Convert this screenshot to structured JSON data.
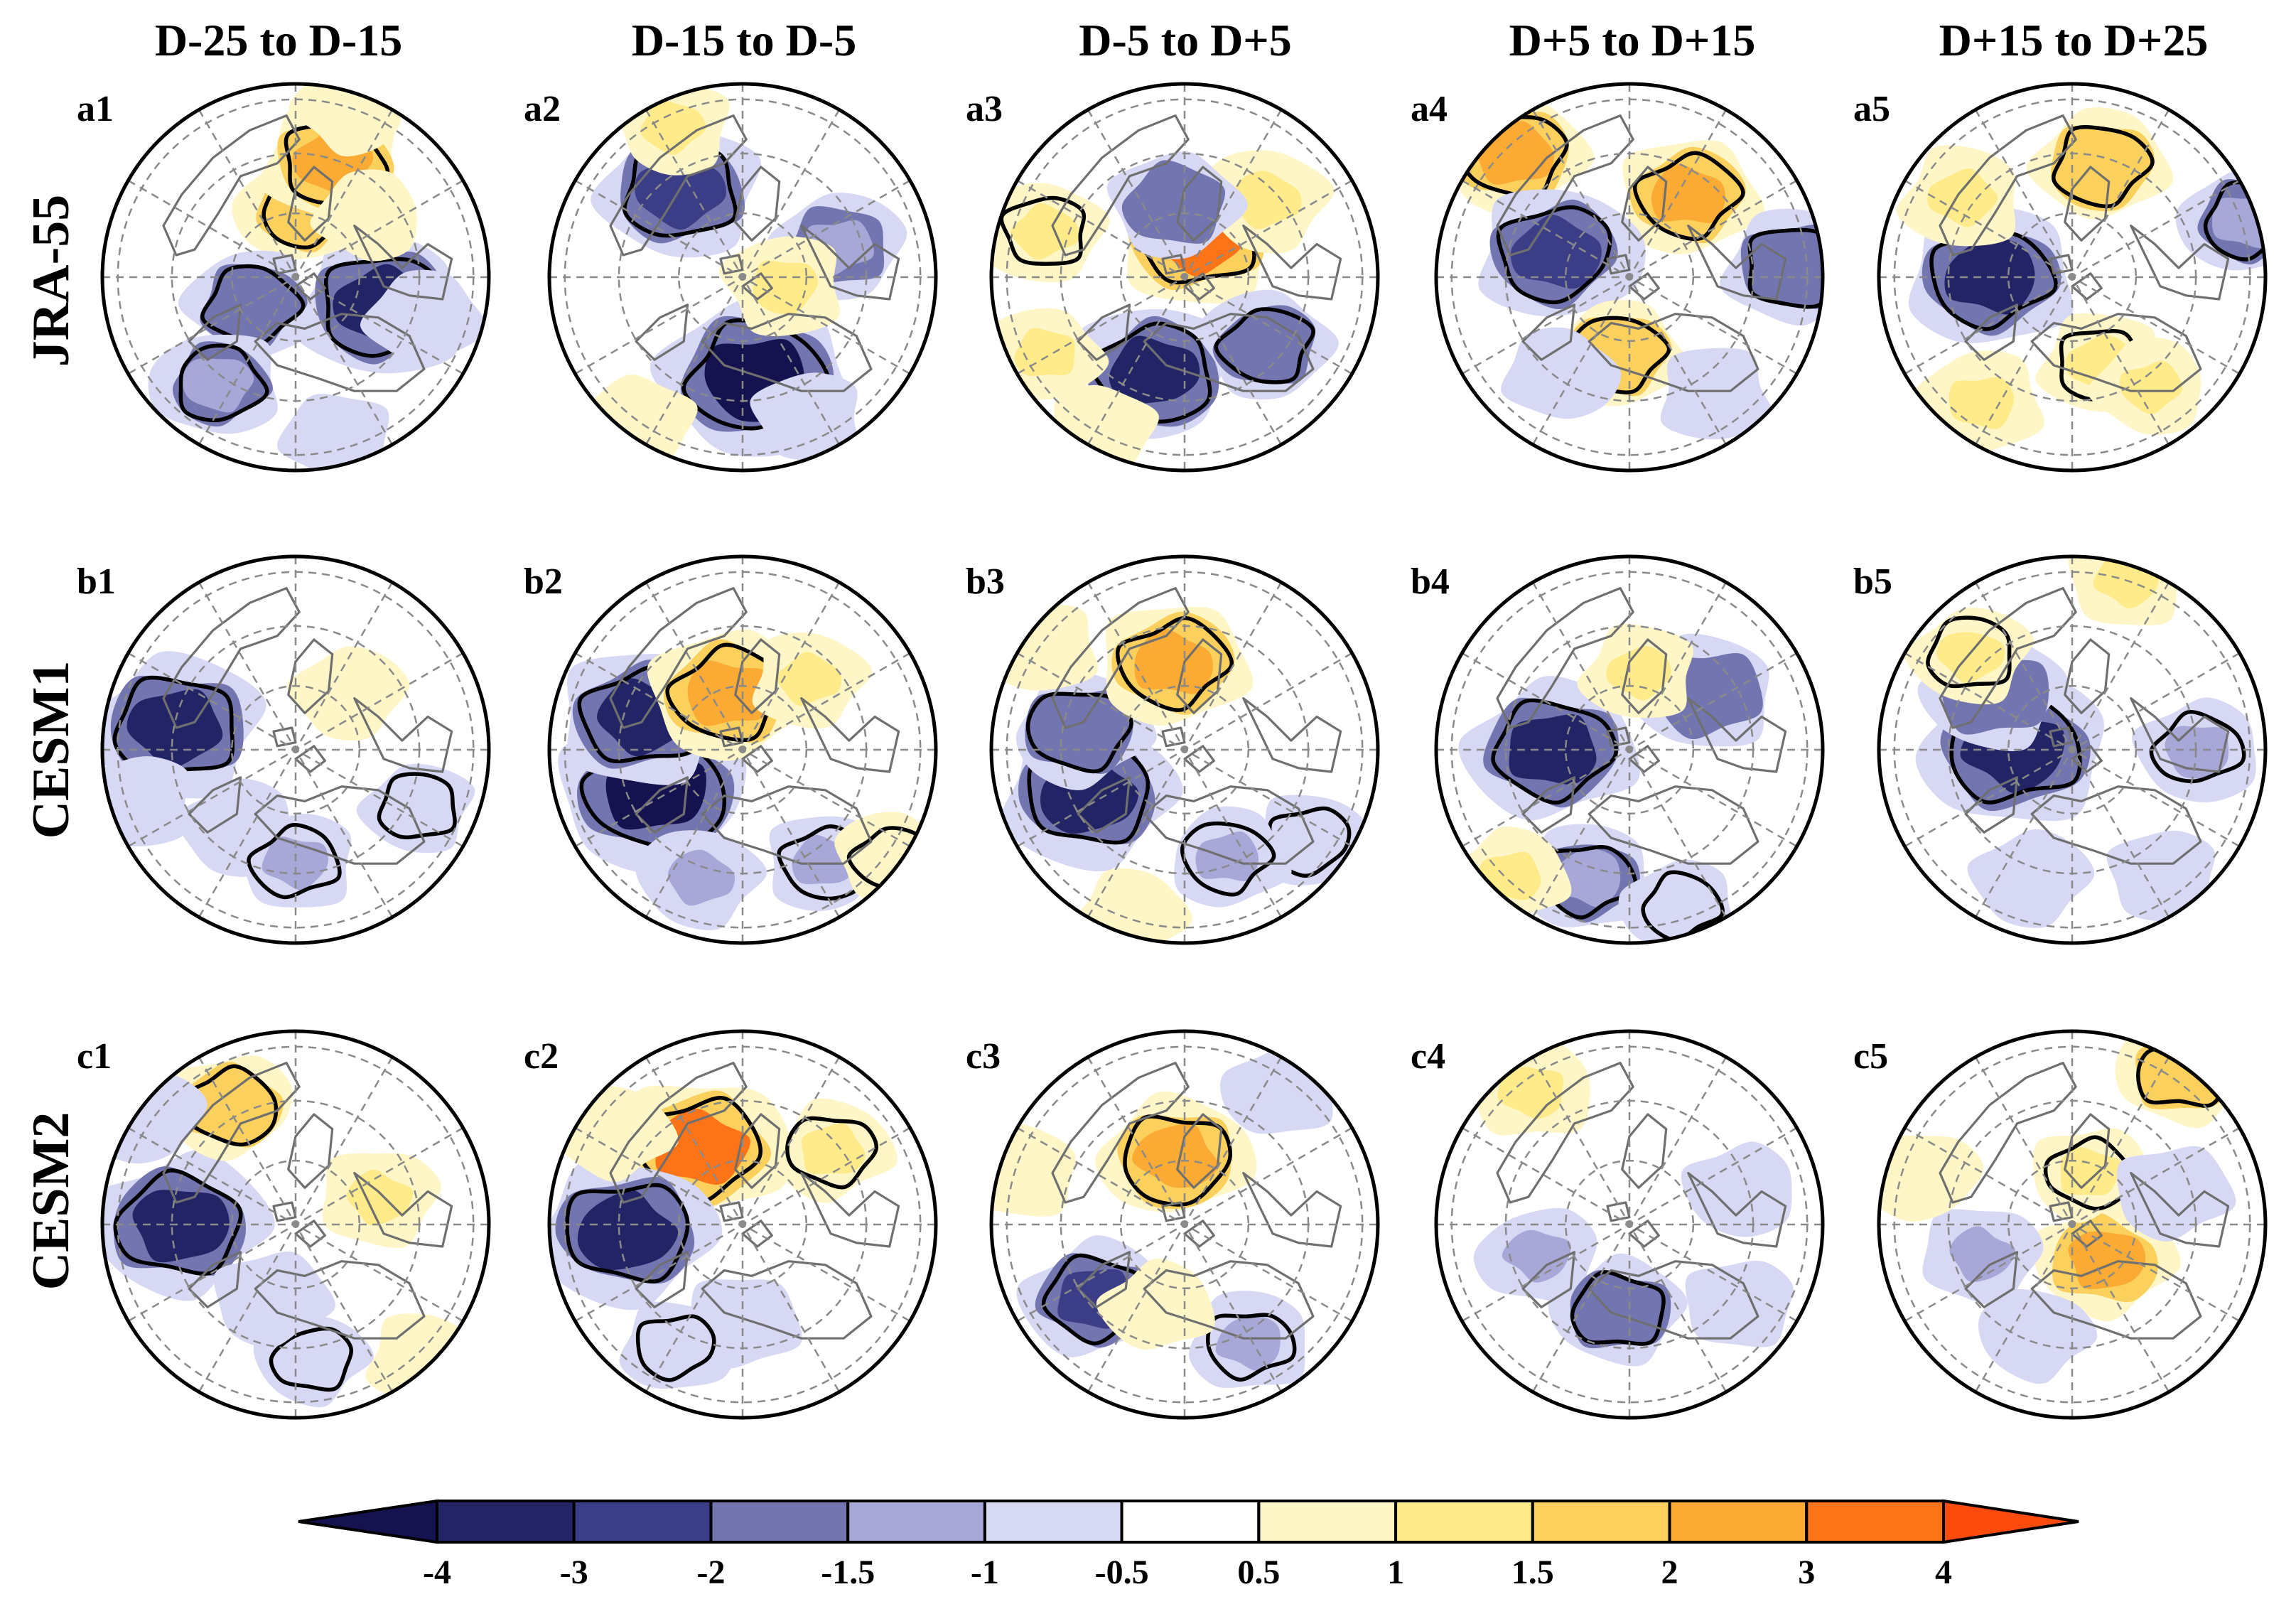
{
  "figure": {
    "column_titles": [
      "D-25 to D-15",
      "D-15 to D-5",
      "D-5 to D+5",
      "D+5 to D+15",
      "D+15 to D+25"
    ],
    "row_titles": [
      "JRA-55",
      "CESM1",
      "CESM2"
    ],
    "panel_labels": [
      [
        "a1",
        "a2",
        "a3",
        "a4",
        "a5"
      ],
      [
        "b1",
        "b2",
        "b3",
        "b4",
        "b5"
      ],
      [
        "c1",
        "c2",
        "c3",
        "c4",
        "c5"
      ]
    ]
  },
  "colorbar": {
    "tick_labels": [
      "-4",
      "-3",
      "-2",
      "-1.5",
      "-1",
      "-0.5",
      "0.5",
      "1",
      "1.5",
      "2",
      "3",
      "4"
    ],
    "bins": [
      {
        "range": "< -4",
        "color": "#14134f"
      },
      {
        "range": "-4 to -3",
        "color": "#232466"
      },
      {
        "range": "-3 to -2",
        "color": "#3b3d86"
      },
      {
        "range": "-2 to -1.5",
        "color": "#7375b0"
      },
      {
        "range": "-1.5 to -1",
        "color": "#a7a8d8"
      },
      {
        "range": "-1 to -0.5",
        "color": "#d7d8f3"
      },
      {
        "range": "-0.5 to 0.5",
        "color": "#ffffff"
      },
      {
        "range": "0.5 to 1",
        "color": "#fff6c7"
      },
      {
        "range": "1 to 1.5",
        "color": "#ffeb8a"
      },
      {
        "range": "1.5 to 2",
        "color": "#fbd05c"
      },
      {
        "range": "2 to 3",
        "color": "#fbab33"
      },
      {
        "range": "3 to 4",
        "color": "#fd7318"
      },
      {
        "range": "> 4",
        "color": "#fd4a0d"
      }
    ]
  },
  "panels": [
    [
      {
        "id": "a1",
        "blobs": [
          {
            "c": 0.3,
            "d": 0.47,
            "v": -3.5,
            "sig": true
          },
          {
            "c": 0.3,
            "d": 0.7,
            "v": -1.0,
            "sig": false
          },
          {
            "c": 0.02,
            "d": 0.36,
            "v": 1.6,
            "sig": true
          },
          {
            "c": 0.05,
            "d": 0.63,
            "v": 2.2,
            "sig": true
          },
          {
            "c": 0.14,
            "d": 0.5,
            "v": 0.7,
            "sig": false
          },
          {
            "c": 0.66,
            "d": 0.27,
            "v": -1.7,
            "sig": true
          },
          {
            "c": 0.6,
            "d": 0.68,
            "v": -1.5,
            "sig": true
          },
          {
            "c": 0.46,
            "d": 0.85,
            "v": -0.7,
            "sig": false
          },
          {
            "c": 0.05,
            "d": 0.92,
            "v": 0.8,
            "sig": false
          }
        ]
      },
      {
        "id": "a2",
        "blobs": [
          {
            "c": 0.48,
            "d": 0.52,
            "v": -4.2,
            "sig": true
          },
          {
            "c": 0.43,
            "d": 0.8,
            "v": -0.8,
            "sig": false
          },
          {
            "c": 0.9,
            "d": 0.55,
            "v": -3.0,
            "sig": true
          },
          {
            "c": 0.2,
            "d": 0.52,
            "v": -1.5,
            "sig": false
          },
          {
            "c": 0.28,
            "d": 0.22,
            "v": 1.3,
            "sig": false
          },
          {
            "c": 0.93,
            "d": 0.86,
            "v": 1.1,
            "sig": false
          },
          {
            "c": 0.6,
            "d": 0.92,
            "v": 0.8,
            "sig": false
          }
        ]
      },
      {
        "id": "a3",
        "blobs": [
          {
            "c": 0.05,
            "d": 0.22,
            "v": 3.2,
            "sig": true
          },
          {
            "c": 0.13,
            "d": 0.58,
            "v": 1.4,
            "sig": false
          },
          {
            "c": 0.98,
            "d": 0.38,
            "v": -1.6,
            "sig": false
          },
          {
            "c": 0.55,
            "d": 0.52,
            "v": -3.1,
            "sig": true
          },
          {
            "c": 0.8,
            "d": 0.76,
            "v": 1.2,
            "sig": true
          },
          {
            "c": 0.36,
            "d": 0.55,
            "v": -1.6,
            "sig": true
          },
          {
            "c": 0.67,
            "d": 0.82,
            "v": 1.0,
            "sig": false
          },
          {
            "c": 0.58,
            "d": 0.9,
            "v": 0.7,
            "sig": false
          }
        ]
      },
      {
        "id": "a4",
        "blobs": [
          {
            "c": 0.88,
            "d": 0.87,
            "v": 2.2,
            "sig": true
          },
          {
            "c": 0.1,
            "d": 0.52,
            "v": 2.1,
            "sig": true
          },
          {
            "c": 0.8,
            "d": 0.4,
            "v": -3.0,
            "sig": true
          },
          {
            "c": 0.24,
            "d": 0.85,
            "v": -2.0,
            "sig": true
          },
          {
            "c": 0.52,
            "d": 0.4,
            "v": 1.5,
            "sig": true
          },
          {
            "c": 0.4,
            "d": 0.75,
            "v": -1.0,
            "sig": false
          },
          {
            "c": 0.6,
            "d": 0.62,
            "v": -0.8,
            "sig": false
          }
        ]
      },
      {
        "id": "a5",
        "blobs": [
          {
            "c": 0.75,
            "d": 0.42,
            "v": -3.3,
            "sig": true
          },
          {
            "c": 0.85,
            "d": 0.7,
            "v": 1.4,
            "sig": false
          },
          {
            "c": 0.04,
            "d": 0.6,
            "v": 1.8,
            "sig": true
          },
          {
            "c": 0.2,
            "d": 0.95,
            "v": -1.5,
            "sig": true
          },
          {
            "c": 0.45,
            "d": 0.47,
            "v": 1.3,
            "sig": true
          },
          {
            "c": 0.4,
            "d": 0.7,
            "v": 1.0,
            "sig": false
          },
          {
            "c": 0.6,
            "d": 0.8,
            "v": 1.4,
            "sig": false
          }
        ]
      }
    ],
    [
      {
        "id": "b1",
        "blobs": [
          {
            "c": 0.78,
            "d": 0.63,
            "v": -3.5,
            "sig": true
          },
          {
            "c": 0.6,
            "d": 0.5,
            "v": -1.0,
            "sig": false
          },
          {
            "c": 0.5,
            "d": 0.58,
            "v": -1.2,
            "sig": true
          },
          {
            "c": 0.32,
            "d": 0.7,
            "v": -0.8,
            "sig": true
          },
          {
            "c": 0.12,
            "d": 0.4,
            "v": 0.8,
            "sig": false
          },
          {
            "c": 0.7,
            "d": 0.85,
            "v": -0.8,
            "sig": false
          }
        ]
      },
      {
        "id": "b2",
        "blobs": [
          {
            "c": 0.68,
            "d": 0.5,
            "v": -4.3,
            "sig": true
          },
          {
            "c": 0.8,
            "d": 0.55,
            "v": -3.2,
            "sig": true
          },
          {
            "c": 0.55,
            "d": 0.7,
            "v": -1.2,
            "sig": false
          },
          {
            "c": 0.96,
            "d": 0.3,
            "v": 2.8,
            "sig": true
          },
          {
            "c": 0.4,
            "d": 0.72,
            "v": -1.2,
            "sig": true
          },
          {
            "c": 0.12,
            "d": 0.5,
            "v": 1.0,
            "sig": false
          },
          {
            "c": 0.35,
            "d": 0.95,
            "v": 0.7,
            "sig": true
          }
        ]
      },
      {
        "id": "b3",
        "blobs": [
          {
            "c": 0.68,
            "d": 0.55,
            "v": -3.5,
            "sig": true
          },
          {
            "c": 0.78,
            "d": 0.55,
            "v": -2.0,
            "sig": true
          },
          {
            "c": 0.98,
            "d": 0.45,
            "v": 2.5,
            "sig": true
          },
          {
            "c": 0.35,
            "d": 0.8,
            "v": -1.0,
            "sig": true
          },
          {
            "c": 0.55,
            "d": 0.9,
            "v": 0.8,
            "sig": false
          },
          {
            "c": 0.44,
            "d": 0.6,
            "v": -1.2,
            "sig": true
          },
          {
            "c": 0.85,
            "d": 0.9,
            "v": 0.8,
            "sig": false
          }
        ]
      },
      {
        "id": "b4",
        "blobs": [
          {
            "c": 0.75,
            "d": 0.4,
            "v": -3.3,
            "sig": true
          },
          {
            "c": 0.55,
            "d": 0.7,
            "v": -1.5,
            "sig": true
          },
          {
            "c": 0.15,
            "d": 0.5,
            "v": -2.0,
            "sig": false
          },
          {
            "c": 0.62,
            "d": 0.9,
            "v": 1.0,
            "sig": false
          },
          {
            "c": 0.45,
            "d": 0.85,
            "v": -0.8,
            "sig": true
          },
          {
            "c": 0.02,
            "d": 0.4,
            "v": 1.0,
            "sig": false
          }
        ]
      },
      {
        "id": "b5",
        "blobs": [
          {
            "c": 0.75,
            "d": 0.3,
            "v": -4.0,
            "sig": true
          },
          {
            "c": 0.85,
            "d": 0.5,
            "v": -2.0,
            "sig": false
          },
          {
            "c": 0.25,
            "d": 0.65,
            "v": -1.3,
            "sig": true
          },
          {
            "c": 0.05,
            "d": 0.92,
            "v": 1.1,
            "sig": false
          },
          {
            "c": 0.87,
            "d": 0.72,
            "v": 1.2,
            "sig": true
          },
          {
            "c": 0.55,
            "d": 0.7,
            "v": -1.0,
            "sig": false
          },
          {
            "c": 0.4,
            "d": 0.8,
            "v": -0.8,
            "sig": false
          }
        ]
      }
    ],
    [
      {
        "id": "c1",
        "blobs": [
          {
            "c": 0.75,
            "d": 0.6,
            "v": -3.5,
            "sig": true
          },
          {
            "c": 0.92,
            "d": 0.7,
            "v": 1.5,
            "sig": true
          },
          {
            "c": 0.2,
            "d": 0.45,
            "v": 1.2,
            "sig": false
          },
          {
            "c": 0.48,
            "d": 0.7,
            "v": -0.8,
            "sig": true
          },
          {
            "c": 0.55,
            "d": 0.4,
            "v": -1.0,
            "sig": false
          },
          {
            "c": 0.85,
            "d": 0.95,
            "v": -1.0,
            "sig": false
          },
          {
            "c": 0.38,
            "d": 0.95,
            "v": 0.8,
            "sig": false
          }
        ]
      },
      {
        "id": "c2",
        "blobs": [
          {
            "c": 0.92,
            "d": 0.45,
            "v": 3.4,
            "sig": true
          },
          {
            "c": 0.74,
            "d": 0.6,
            "v": -3.6,
            "sig": true
          },
          {
            "c": 0.14,
            "d": 0.6,
            "v": 1.2,
            "sig": true
          },
          {
            "c": 0.5,
            "d": 0.5,
            "v": -1.0,
            "sig": false
          },
          {
            "c": 0.58,
            "d": 0.72,
            "v": -0.8,
            "sig": true
          },
          {
            "c": 0.85,
            "d": 0.8,
            "v": 0.8,
            "sig": false
          }
        ]
      },
      {
        "id": "c3",
        "blobs": [
          {
            "c": 0.98,
            "d": 0.35,
            "v": 2.5,
            "sig": true
          },
          {
            "c": 0.64,
            "d": 0.6,
            "v": -2.2,
            "sig": true
          },
          {
            "c": 0.42,
            "d": 0.7,
            "v": -1.2,
            "sig": true
          },
          {
            "c": 0.8,
            "d": 0.88,
            "v": 0.9,
            "sig": false
          },
          {
            "c": 0.55,
            "d": 0.45,
            "v": 0.8,
            "sig": false
          },
          {
            "c": 0.1,
            "d": 0.85,
            "v": -0.8,
            "sig": false
          }
        ]
      },
      {
        "id": "c4",
        "blobs": [
          {
            "c": 0.9,
            "d": 0.85,
            "v": 1.2,
            "sig": false
          },
          {
            "c": 0.7,
            "d": 0.5,
            "v": -1.2,
            "sig": false
          },
          {
            "c": 0.52,
            "d": 0.45,
            "v": -1.6,
            "sig": true
          },
          {
            "c": 0.2,
            "d": 0.6,
            "v": -0.8,
            "sig": false
          },
          {
            "c": 0.35,
            "d": 0.7,
            "v": -0.8,
            "sig": false
          }
        ]
      },
      {
        "id": "c5",
        "blobs": [
          {
            "c": 0.1,
            "d": 0.97,
            "v": 1.5,
            "sig": true
          },
          {
            "c": 0.38,
            "d": 0.25,
            "v": 2.0,
            "sig": false
          },
          {
            "c": 0.05,
            "d": 0.28,
            "v": 1.0,
            "sig": true
          },
          {
            "c": 0.7,
            "d": 0.5,
            "v": -1.2,
            "sig": false
          },
          {
            "c": 0.55,
            "d": 0.6,
            "v": -0.8,
            "sig": false
          },
          {
            "c": 0.2,
            "d": 0.55,
            "v": -1.0,
            "sig": false
          },
          {
            "c": 0.8,
            "d": 0.8,
            "v": 0.8,
            "sig": false
          }
        ]
      }
    ]
  ]
}
